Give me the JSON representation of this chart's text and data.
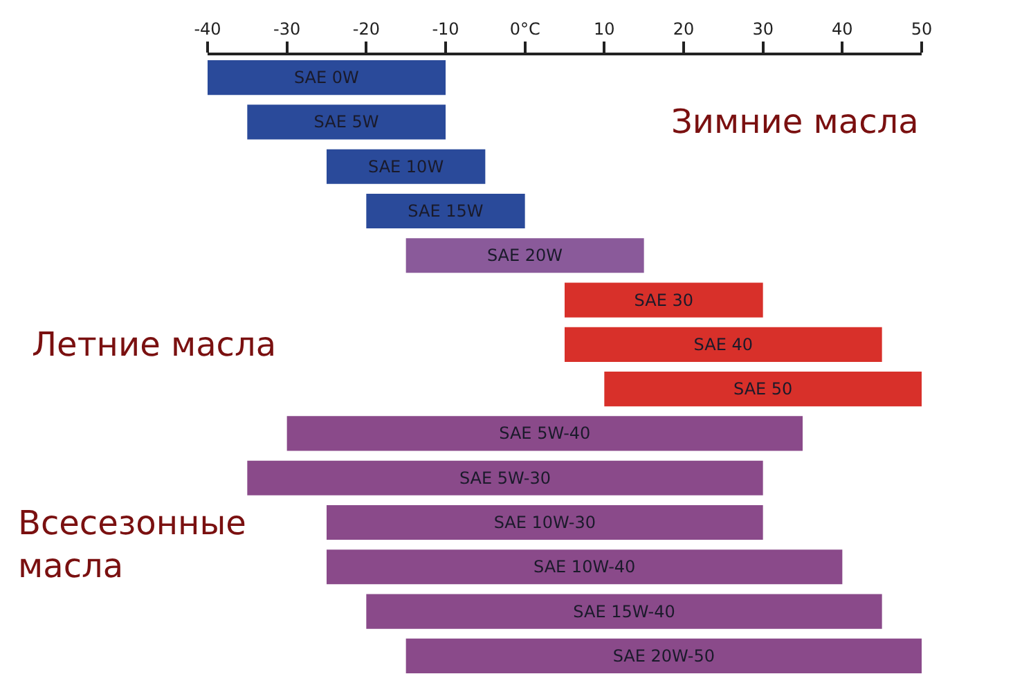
{
  "chart_data": {
    "type": "bar",
    "orientation": "horizontal",
    "tick_labels": "x",
    "categories": [
      "SAE 0W",
      "SAE 5W",
      "SAE 10W",
      "SAE 15W",
      "SAE 20W",
      "SAE 30",
      "SAE 40",
      "SAE 50",
      "SAE 5W-40",
      "SAE 5W-30",
      "SAE 10W-30",
      "SAE 10W-40",
      "SAE 15W-40",
      "SAE 20W-50"
    ],
    "base": [
      -40,
      -35,
      -25,
      -20,
      -15,
      5,
      5,
      10,
      -30,
      -35,
      -25,
      -25,
      -20,
      -15
    ],
    "values": [
      30,
      25,
      20,
      20,
      30,
      25,
      40,
      40,
      65,
      65,
      55,
      65,
      65,
      65
    ],
    "colors": [
      "#2a4a9a",
      "#2a4a9a",
      "#2a4a9a",
      "#2a4a9a",
      "#8a5a9a",
      "#d8302a",
      "#d8302a",
      "#d8302a",
      "#8a4a8a",
      "#8a4a8a",
      "#8a4a8a",
      "#8a4a8a",
      "#8a4a8a",
      "#8a4a8a"
    ],
    "xlim": [
      -40,
      50
    ],
    "xticks": [
      -40,
      -30,
      -20,
      -10,
      {
        "value": 0,
        "label": "0°C"
      },
      10,
      20,
      30,
      40,
      50
    ],
    "annotations": [
      "Зимние масла",
      "Летние масла",
      "Всесезонные масла"
    ]
  }
}
